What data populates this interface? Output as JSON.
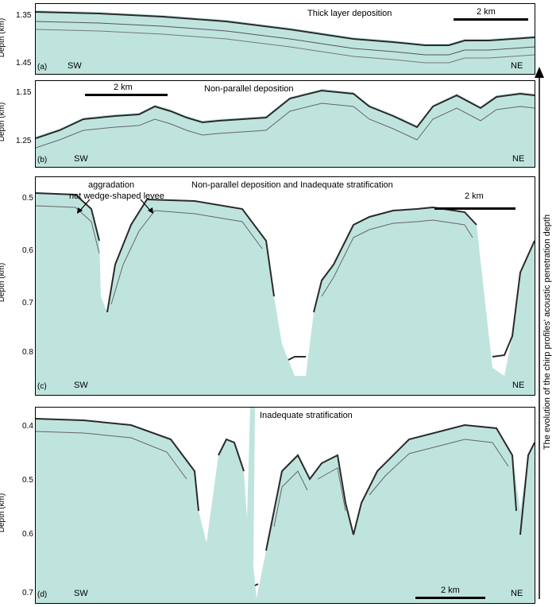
{
  "panels": [
    {
      "id": "a",
      "label": "(a)",
      "title": "Thick layer deposition",
      "sw": "SW",
      "ne": "NE",
      "scale": "2 km",
      "ylabel": "Depth (km)",
      "ticks": [
        "1.35",
        "1.45"
      ]
    },
    {
      "id": "b",
      "label": "(b)",
      "title": "Non-parallel  deposition",
      "sw": "SW",
      "ne": "NE",
      "scale": "2 km",
      "ylabel": "Depth (km)",
      "ticks": [
        "1.15",
        "1.25"
      ]
    },
    {
      "id": "c",
      "label": "(c)",
      "title": "Non-parallel  deposition and Inadequate stratification",
      "sw": "SW",
      "ne": "NE",
      "scale": "2 km",
      "ylabel": "Depth (km)",
      "ticks": [
        "0.5",
        "0.6",
        "0.7",
        "0.8"
      ],
      "annotation1": "aggradation",
      "annotation2": "not wedge-shaped levee"
    },
    {
      "id": "d",
      "label": "(d)",
      "title": "Inadequate stratification",
      "sw": "SW",
      "ne": "NE",
      "scale": "2 km",
      "ylabel": "Depth (km)",
      "ticks": [
        "0.4",
        "0.5",
        "0.6",
        "0.7"
      ]
    }
  ],
  "side_caption": "The evolution of the chirp profiles' acoustic penetration depth",
  "colors": {
    "fill": "#bfe4de",
    "dark": "#2a2a2a"
  }
}
